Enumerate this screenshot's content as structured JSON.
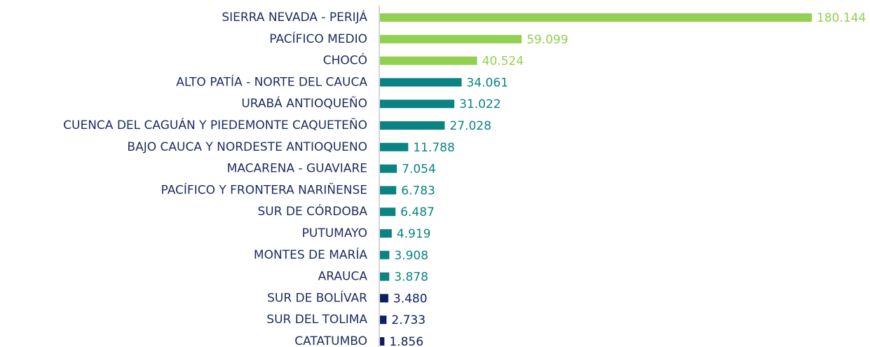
{
  "chart_data": {
    "type": "bar",
    "orientation": "horizontal",
    "categories": [
      "SIERRA NEVADA - PERIJÁ",
      "PACÍFICO MEDIO",
      "CHOCÓ",
      "ALTO PATÍA - NORTE DEL CAUCA",
      "URABÁ ANTIOQUEÑO",
      "CUENCA DEL CAGUÁN Y PIEDEMONTE CAQUETEÑO",
      "BAJO CAUCA Y NORDESTE ANTIOQUENO",
      "MACARENA - GUAVIARE",
      "PACÍFICO Y FRONTERA NARIÑENSE",
      "SUR DE CÓRDOBA",
      "PUTUMAYO",
      "MONTES DE MARÍA",
      "ARAUCA",
      "SUR DE BOLÍVAR",
      "SUR DEL TOLIMA",
      "CATATUMBO"
    ],
    "values": [
      180144,
      59099,
      40524,
      34061,
      31022,
      27028,
      11788,
      7054,
      6783,
      6487,
      4919,
      3908,
      3878,
      3480,
      2733,
      1856
    ],
    "value_labels": [
      "180.144",
      "59.099",
      "40.524",
      "34.061",
      "31.022",
      "27.028",
      "11.788",
      "7.054",
      "6.783",
      "6.487",
      "4.919",
      "3.908",
      "3.878",
      "3.480",
      "2.733",
      "1.856"
    ],
    "colors": [
      "#92d050",
      "#92d050",
      "#92d050",
      "#0b8383",
      "#0b8383",
      "#0b8383",
      "#0b8383",
      "#0b8383",
      "#0b8383",
      "#0b8383",
      "#0b8383",
      "#0b8383",
      "#0b8383",
      "#0d1f5f",
      "#0d1f5f",
      "#0d1f5f"
    ]
  }
}
